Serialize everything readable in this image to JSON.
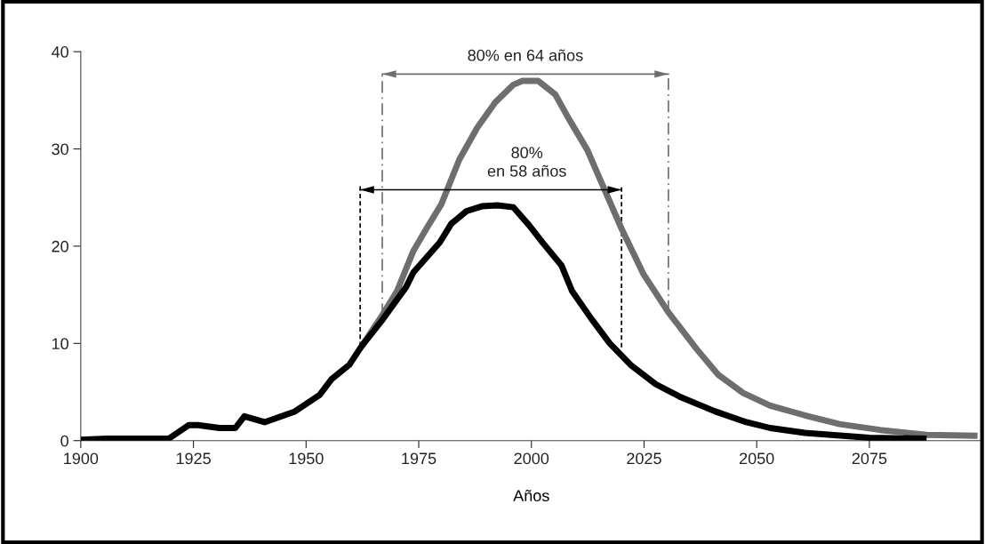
{
  "chart_data": {
    "type": "line",
    "xlabel": "Años",
    "xlim": [
      1900,
      2100
    ],
    "xticks": [
      1900,
      1925,
      1950,
      1975,
      2000,
      2025,
      2050,
      2075,
      {
        "value": 2100,
        "label": null
      }
    ],
    "ylim": [
      0,
      40
    ],
    "yticks": [
      0,
      10,
      20,
      30,
      40
    ],
    "grid": false,
    "legend": false,
    "series": [
      {
        "color": "#6e6e6e",
        "x": [
          1962.3,
          1966.9,
          1970.2,
          1973.8,
          1976.7,
          1980,
          1984,
          1988,
          1992,
          1996,
          1998,
          2001.5,
          2005.3,
          2008.3,
          2012.4,
          2015.2,
          2020,
          2024.9,
          2030.4,
          2036.7,
          2041.4,
          2047,
          2053,
          2060.7,
          2068.4,
          2077.3,
          2087.7,
          2099
        ],
        "values": [
          9.7,
          12.9,
          15.4,
          19.5,
          21.8,
          24.3,
          28.9,
          32.2,
          34.8,
          36.6,
          37.0,
          37.0,
          35.6,
          33.1,
          29.9,
          26.9,
          21.8,
          17.1,
          13.2,
          9.4,
          6.8,
          4.9,
          3.6,
          2.6,
          1.7,
          1.1,
          0.6,
          0.5
        ]
      },
      {
        "color": "#000000",
        "x": [
          1900,
          1905.7,
          1919.5,
          1924,
          1926,
          1930.8,
          1934.3,
          1936.3,
          1940.8,
          1947.5,
          1953,
          1955.6,
          1959.6,
          1962.3,
          1966.9,
          1972.2,
          1973.8,
          1979.7,
          1982.2,
          1985.6,
          1989,
          1992.5,
          1996,
          1999.4,
          2002.6,
          2006.7,
          2009,
          2013.2,
          2017.4,
          2022,
          2027.6,
          2033,
          2040.8,
          2047.7,
          2053,
          2060.7,
          2075,
          2087.7
        ],
        "values": [
          0.1,
          0.2,
          0.2,
          1.6,
          1.6,
          1.3,
          1.3,
          2.5,
          1.9,
          3.0,
          4.7,
          6.3,
          7.8,
          9.7,
          12.4,
          15.8,
          17.3,
          20.4,
          22.3,
          23.6,
          24.1,
          24.2,
          24.0,
          22.2,
          20.3,
          18.0,
          15.4,
          12.6,
          10.0,
          7.8,
          5.8,
          4.5,
          3.0,
          1.9,
          1.3,
          0.8,
          0.3,
          0.2
        ]
      },
      {
        "color": "#6e6e6e",
        "x": [
          1966.9,
          1966.9
        ],
        "values": [
          12.9,
          37.7
        ],
        "line_style": "dashdot"
      },
      {
        "color": "#6e6e6e",
        "x": [
          2030.4,
          2030.4
        ],
        "values": [
          13.2,
          37.7
        ],
        "line_style": "dashdot"
      },
      {
        "color": "#000000",
        "x": [
          1962,
          1962
        ],
        "values": [
          9.7,
          26.2
        ],
        "line_style": "dashed"
      },
      {
        "color": "#000000",
        "x": [
          2020,
          2020
        ],
        "values": [
          9.6,
          26.2
        ],
        "line_style": "dashed"
      },
      {
        "color": "#6e6e6e",
        "x": [
          1966.9,
          2030.4
        ],
        "values": [
          37.7,
          37.7
        ],
        "line_style": "solid"
      },
      {
        "color": "#000000",
        "x": [
          1962,
          2020
        ],
        "values": [
          25.8,
          25.8
        ],
        "line_style": "solid"
      }
    ],
    "annotations": [
      "80% en 64 años",
      "80%\nen 58 años"
    ]
  }
}
